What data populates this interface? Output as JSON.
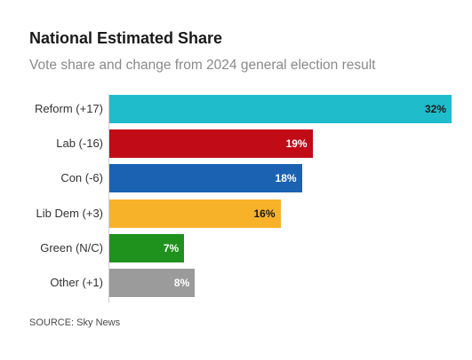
{
  "chart_data": {
    "type": "bar",
    "orientation": "horizontal",
    "title": "National Estimated Share",
    "subtitle": "Vote share and change from 2024 general election result",
    "categories": [
      "Reform (+17)",
      "Lab (-16)",
      "Con (-6)",
      "Lib Dem (+3)",
      "Green (N/C)",
      "Other (+1)"
    ],
    "values": [
      32,
      19,
      18,
      16,
      7,
      8
    ],
    "value_labels": [
      "32%",
      "19%",
      "18%",
      "16%",
      "7%",
      "8%"
    ],
    "colors": [
      "#1fbccc",
      "#c10b17",
      "#1b62b3",
      "#f7b22a",
      "#1f911d",
      "#9b9b9b"
    ],
    "label_colors": [
      "#1a1a1a",
      "#ffffff",
      "#ffffff",
      "#1a1a1a",
      "#ffffff",
      "#ffffff"
    ],
    "xlim": [
      0,
      32
    ],
    "grid": false,
    "legend": "none",
    "source": "SOURCE: Sky News"
  }
}
